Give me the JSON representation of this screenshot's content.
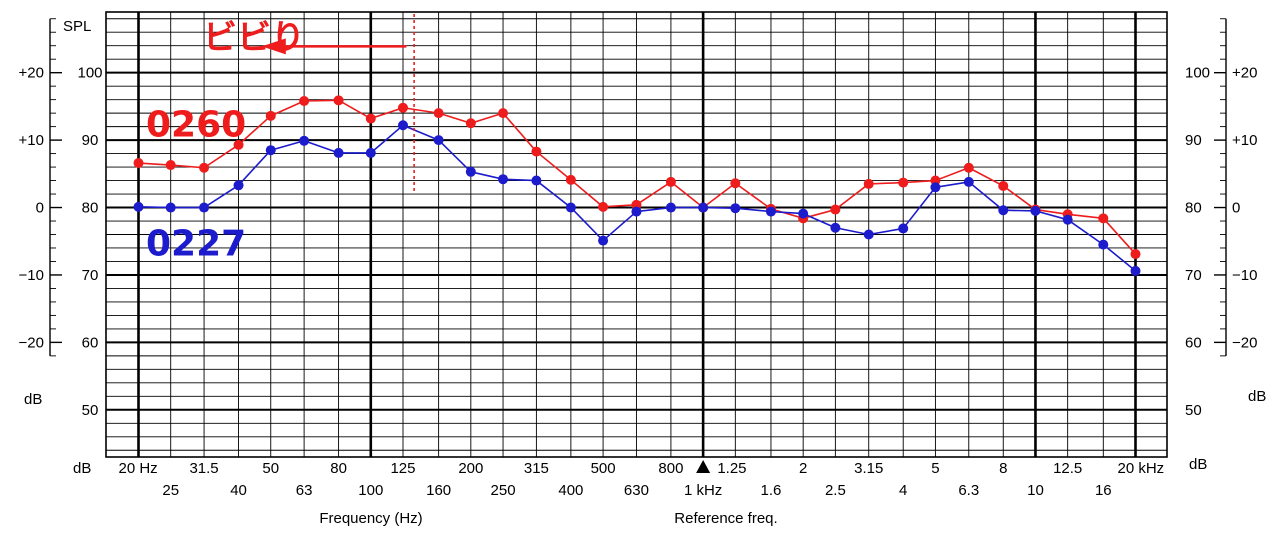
{
  "chart_data": {
    "type": "line",
    "title": "",
    "x_scale": "log",
    "y_unit_label_top": "SPL",
    "y_unit_label_bottom": "dB",
    "y_unit_label_right": "dB",
    "x_axis_prefix": "dB",
    "ylim_spl": [
      43,
      109
    ],
    "ylim_relative": [
      -37,
      29
    ],
    "spl_ticks": [
      "50",
      "60",
      "70",
      "80",
      "90",
      "100"
    ],
    "spl_tick_values": [
      50,
      60,
      70,
      80,
      90,
      100
    ],
    "rel_ticks": [
      "−20",
      "−10",
      "0",
      "+10",
      "+20"
    ],
    "rel_tick_values": [
      -20,
      -10,
      0,
      10,
      20
    ],
    "x": [
      20,
      25,
      31.5,
      40,
      50,
      63,
      80,
      100,
      125,
      160,
      200,
      250,
      315,
      400,
      500,
      630,
      800,
      1000,
      1250,
      1600,
      2000,
      2500,
      3150,
      4000,
      5000,
      6300,
      8000,
      10000,
      12500,
      16000,
      20000
    ],
    "x_labels_upper": [
      {
        "f": 20,
        "t": "20 Hz"
      },
      {
        "f": 31.5,
        "t": "31.5"
      },
      {
        "f": 50,
        "t": "50"
      },
      {
        "f": 80,
        "t": "80"
      },
      {
        "f": 125,
        "t": "125"
      },
      {
        "f": 200,
        "t": "200"
      },
      {
        "f": 315,
        "t": "315"
      },
      {
        "f": 500,
        "t": "500"
      },
      {
        "f": 800,
        "t": "800"
      },
      {
        "f": 1250,
        "t": "1.25"
      },
      {
        "f": 2000,
        "t": "2"
      },
      {
        "f": 3150,
        "t": "3.15"
      },
      {
        "f": 5000,
        "t": "5"
      },
      {
        "f": 8000,
        "t": "8"
      },
      {
        "f": 12500,
        "t": "12.5"
      },
      {
        "f": 20000,
        "t": "20 kHz"
      }
    ],
    "x_labels_lower": [
      {
        "f": 25,
        "t": "25"
      },
      {
        "f": 40,
        "t": "40"
      },
      {
        "f": 63,
        "t": "63"
      },
      {
        "f": 100,
        "t": "100"
      },
      {
        "f": 160,
        "t": "160"
      },
      {
        "f": 250,
        "t": "250"
      },
      {
        "f": 400,
        "t": "400"
      },
      {
        "f": 630,
        "t": "630"
      },
      {
        "f": 1000,
        "t": "1 kHz"
      },
      {
        "f": 1600,
        "t": "1.6"
      },
      {
        "f": 2500,
        "t": "2.5"
      },
      {
        "f": 4000,
        "t": "4"
      },
      {
        "f": 6300,
        "t": "6.3"
      },
      {
        "f": 10000,
        "t": "10"
      },
      {
        "f": 16000,
        "t": "16"
      }
    ],
    "xlabel": "Frequency (Hz)",
    "reference_label": "Reference freq.",
    "reference_frequency": 1000,
    "series": [
      {
        "name": "0260",
        "color": "#ee1c1c",
        "label_at": [
          20,
          92.5
        ],
        "values": [
          86.6,
          86.3,
          85.9,
          89.3,
          93.6,
          95.8,
          95.9,
          93.2,
          94.8,
          94.0,
          92.5,
          94.0,
          88.3,
          84.1,
          80.1,
          80.4,
          83.8,
          80.0,
          83.6,
          79.8,
          78.4,
          79.7,
          83.5,
          83.7,
          84.0,
          85.9,
          83.2,
          79.7,
          79.0,
          78.4,
          73.1
        ]
      },
      {
        "name": "0227",
        "color": "#1c1ccc",
        "label_at": [
          20,
          74.8
        ],
        "values": [
          80.1,
          80.0,
          80.0,
          83.3,
          88.5,
          89.9,
          88.1,
          88.1,
          92.2,
          90.0,
          85.3,
          84.2,
          84.0,
          80.0,
          75.1,
          79.4,
          80.0,
          80.0,
          79.9,
          79.4,
          79.1,
          77.0,
          76.0,
          76.9,
          83.0,
          83.8,
          79.6,
          79.5,
          78.2,
          74.5,
          70.6
        ]
      }
    ],
    "annotation": {
      "text": "ビビり",
      "color": "#ee1c1c",
      "arrow_from_f": 128,
      "arrow_to_f": 47,
      "at_y": 103.9,
      "marker_f": 135,
      "marker_y_range": [
        82,
        108.7
      ]
    },
    "grid": true
  }
}
